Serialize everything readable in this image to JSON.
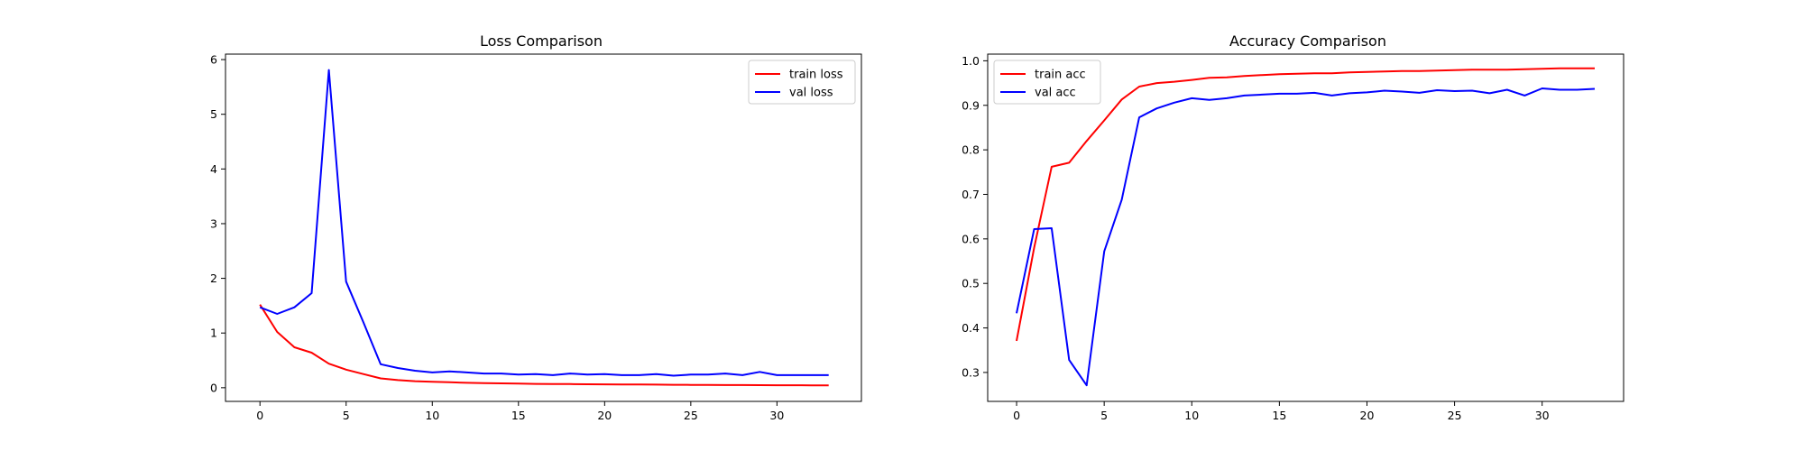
{
  "colors": {
    "train": "#ff0000",
    "val": "#0000ff",
    "axes": "#000000",
    "background": "#ffffff"
  },
  "chart_data": [
    {
      "type": "line",
      "title": "Loss Comparison",
      "xlabel": "",
      "ylabel": "",
      "xlim": [
        -2.0,
        34.9
      ],
      "ylim": [
        -0.25,
        6.1
      ],
      "xticks": [
        0,
        5,
        10,
        15,
        20,
        25,
        30
      ],
      "yticks": [
        0,
        1,
        2,
        3,
        4,
        5,
        6
      ],
      "grid": false,
      "legend": "top-right",
      "x": [
        0,
        1,
        2,
        3,
        4,
        5,
        6,
        7,
        8,
        9,
        10,
        11,
        12,
        13,
        14,
        15,
        16,
        17,
        18,
        19,
        20,
        21,
        22,
        23,
        24,
        25,
        26,
        27,
        28,
        29,
        30,
        31,
        32,
        33
      ],
      "series": [
        {
          "name": "train loss",
          "color": "#ff0000",
          "values": [
            1.52,
            1.02,
            0.74,
            0.64,
            0.44,
            0.33,
            0.25,
            0.17,
            0.14,
            0.12,
            0.11,
            0.1,
            0.09,
            0.085,
            0.08,
            0.075,
            0.07,
            0.068,
            0.066,
            0.064,
            0.062,
            0.06,
            0.058,
            0.056,
            0.054,
            0.052,
            0.05,
            0.049,
            0.048,
            0.047,
            0.046,
            0.045,
            0.044,
            0.043
          ]
        },
        {
          "name": "val loss",
          "color": "#0000ff",
          "values": [
            1.47,
            1.35,
            1.47,
            1.73,
            5.81,
            1.94,
            1.2,
            0.43,
            0.36,
            0.31,
            0.28,
            0.3,
            0.28,
            0.26,
            0.26,
            0.24,
            0.25,
            0.23,
            0.26,
            0.24,
            0.25,
            0.23,
            0.23,
            0.25,
            0.22,
            0.24,
            0.24,
            0.26,
            0.23,
            0.29,
            0.23,
            0.23,
            0.23,
            0.23
          ]
        }
      ]
    },
    {
      "type": "line",
      "title": "Accuracy Comparison",
      "xlabel": "",
      "ylabel": "",
      "xlim": [
        -1.65,
        34.65
      ],
      "ylim": [
        0.235,
        1.015
      ],
      "xticks": [
        0,
        5,
        10,
        15,
        20,
        25,
        30
      ],
      "yticks": [
        0.3,
        0.4,
        0.5,
        0.6,
        0.7,
        0.8,
        0.9,
        1.0
      ],
      "ytick_labels": [
        "0.3",
        "0.4",
        "0.5",
        "0.6",
        "0.7",
        "0.8",
        "0.9",
        "1.0"
      ],
      "grid": false,
      "legend": "top-left",
      "x": [
        0,
        1,
        2,
        3,
        4,
        5,
        6,
        7,
        8,
        9,
        10,
        11,
        12,
        13,
        14,
        15,
        16,
        17,
        18,
        19,
        20,
        21,
        22,
        23,
        24,
        25,
        26,
        27,
        28,
        29,
        30,
        31,
        32,
        33
      ],
      "series": [
        {
          "name": "train acc",
          "color": "#ff0000",
          "values": [
            0.371,
            0.58,
            0.762,
            0.771,
            0.82,
            0.866,
            0.913,
            0.942,
            0.95,
            0.953,
            0.957,
            0.962,
            0.963,
            0.966,
            0.968,
            0.97,
            0.971,
            0.972,
            0.972,
            0.974,
            0.975,
            0.976,
            0.977,
            0.977,
            0.978,
            0.979,
            0.98,
            0.98,
            0.98,
            0.981,
            0.982,
            0.983,
            0.983,
            0.983
          ]
        },
        {
          "name": "val acc",
          "color": "#0000ff",
          "values": [
            0.433,
            0.622,
            0.624,
            0.328,
            0.271,
            0.572,
            0.688,
            0.873,
            0.893,
            0.906,
            0.916,
            0.912,
            0.916,
            0.922,
            0.924,
            0.926,
            0.926,
            0.928,
            0.922,
            0.927,
            0.929,
            0.933,
            0.931,
            0.928,
            0.934,
            0.932,
            0.933,
            0.927,
            0.935,
            0.922,
            0.938,
            0.935,
            0.935,
            0.937
          ]
        }
      ]
    }
  ]
}
